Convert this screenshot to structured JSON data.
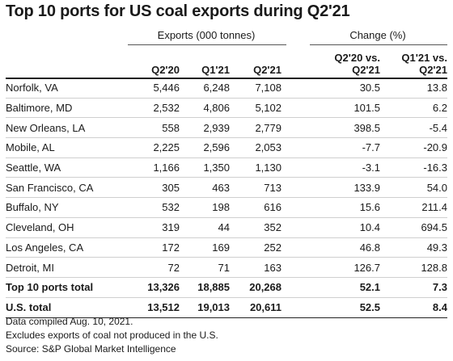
{
  "title": "Top 10 ports for US coal exports during Q2'21",
  "groups": {
    "exports": "Exports (000 tonnes)",
    "change": "Change (%)"
  },
  "columns": {
    "c1": "Q2'20",
    "c2": "Q1'21",
    "c3": "Q2'21",
    "c4_line1": "Q2'20 vs.",
    "c4_line2": "Q2'21",
    "c5_line1": "Q1'21 vs.",
    "c5_line2": "Q2'21"
  },
  "rows": [
    {
      "port": "Norfolk, VA",
      "q220": "5,446",
      "q121": "6,248",
      "q221": "7,108",
      "chg_yoy": "30.5",
      "chg_qoq": "13.8"
    },
    {
      "port": "Baltimore, MD",
      "q220": "2,532",
      "q121": "4,806",
      "q221": "5,102",
      "chg_yoy": "101.5",
      "chg_qoq": "6.2"
    },
    {
      "port": "New Orleans, LA",
      "q220": "558",
      "q121": "2,939",
      "q221": "2,779",
      "chg_yoy": "398.5",
      "chg_qoq": "-5.4"
    },
    {
      "port": "Mobile, AL",
      "q220": "2,225",
      "q121": "2,596",
      "q221": "2,053",
      "chg_yoy": "-7.7",
      "chg_qoq": "-20.9"
    },
    {
      "port": "Seattle, WA",
      "q220": "1,166",
      "q121": "1,350",
      "q221": "1,130",
      "chg_yoy": "-3.1",
      "chg_qoq": "-16.3"
    },
    {
      "port": "San Francisco, CA",
      "q220": "305",
      "q121": "463",
      "q221": "713",
      "chg_yoy": "133.9",
      "chg_qoq": "54.0"
    },
    {
      "port": "Buffalo, NY",
      "q220": "532",
      "q121": "198",
      "q221": "616",
      "chg_yoy": "15.6",
      "chg_qoq": "211.4"
    },
    {
      "port": "Cleveland, OH",
      "q220": "319",
      "q121": "44",
      "q221": "352",
      "chg_yoy": "10.4",
      "chg_qoq": "694.5"
    },
    {
      "port": "Los Angeles, CA",
      "q220": "172",
      "q121": "169",
      "q221": "252",
      "chg_yoy": "46.8",
      "chg_qoq": "49.3"
    },
    {
      "port": "Detroit, MI",
      "q220": "72",
      "q121": "71",
      "q221": "163",
      "chg_yoy": "126.7",
      "chg_qoq": "128.8"
    }
  ],
  "totals": [
    {
      "port": "Top 10 ports total",
      "q220": "13,326",
      "q121": "18,885",
      "q221": "20,268",
      "chg_yoy": "52.1",
      "chg_qoq": "7.3"
    },
    {
      "port": "U.S. total",
      "q220": "13,512",
      "q121": "19,013",
      "q221": "20,611",
      "chg_yoy": "52.5",
      "chg_qoq": "8.4"
    }
  ],
  "notes": [
    "Data compiled Aug. 10, 2021.",
    "Excludes exports of coal not produced in the U.S.",
    "Source: S&P Global Market Intelligence"
  ]
}
